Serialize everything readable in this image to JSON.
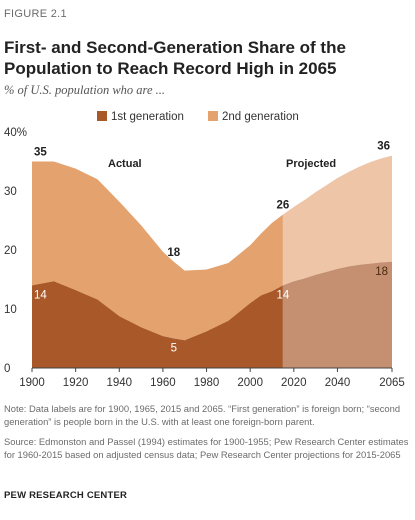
{
  "figure_label": "FIGURE 2.1",
  "title": "First- and Second-Generation Share of the Population to Reach Record High in 2065",
  "subtitle": "% of U.S. population who are ...",
  "notes": [
    "Note: Data labels are for 1900, 1965, 2015 and 2065. “First generation” is foreign born; “second generation” is people born in the U.S. with at least one foreign-born parent.",
    "Source: Edmonston and Passel (1994) estimates for 1900-1955; Pew Research Center estimates for 1960-2015 based on adjusted census data; Pew Research Center projections for 2015-2065"
  ],
  "source_org": "PEW RESEARCH CENTER",
  "colors": {
    "first_gen": "#a9582a",
    "second_gen": "#e3a26e",
    "first_gen_projected": "#c59071",
    "second_gen_projected": "#eec5a7"
  },
  "chart_data": {
    "type": "area",
    "stacked": true,
    "x": [
      1900,
      1910,
      1920,
      1930,
      1940,
      1950,
      1960,
      1965,
      1970,
      1980,
      1990,
      2000,
      2005,
      2010,
      2015,
      2020,
      2025,
      2030,
      2035,
      2040,
      2045,
      2050,
      2055,
      2060,
      2065
    ],
    "series": [
      {
        "name": "1st generation",
        "values": [
          14,
          14.7,
          13.2,
          11.6,
          8.8,
          6.9,
          5.4,
          5,
          4.7,
          6.2,
          8,
          11,
          12.3,
          13,
          14,
          14.7,
          15.2,
          15.8,
          16.3,
          16.8,
          17.2,
          17.5,
          17.7,
          17.9,
          18
        ]
      },
      {
        "name": "2nd generation",
        "values": [
          21,
          20.3,
          20.6,
          20.4,
          19.4,
          17.3,
          14.3,
          13,
          11.8,
          10.5,
          9.8,
          9.8,
          10.5,
          11.6,
          12,
          12.6,
          13.3,
          14,
          14.7,
          15.4,
          16,
          16.6,
          17.2,
          17.6,
          18
        ]
      }
    ],
    "projection_start": 2015,
    "region_labels": {
      "actual": "Actual",
      "projected": "Projected"
    },
    "data_labels": [
      {
        "text": "35",
        "style": "total",
        "x": 1900,
        "y": 35
      },
      {
        "text": "14",
        "style": "first",
        "x": 1900,
        "y": 14
      },
      {
        "text": "18",
        "style": "total",
        "x": 1965,
        "y": 18
      },
      {
        "text": "5",
        "style": "first",
        "x": 1965,
        "y": 5
      },
      {
        "text": "26",
        "style": "total",
        "x": 2015,
        "y": 26
      },
      {
        "text": "14",
        "style": "first",
        "x": 2015,
        "y": 14
      },
      {
        "text": "36",
        "style": "total",
        "x": 2065,
        "y": 36
      },
      {
        "text": "18",
        "style": "first",
        "x": 2065,
        "y": 18
      }
    ],
    "xticks": [
      1900,
      1920,
      1940,
      1960,
      1980,
      2000,
      2020,
      2040,
      2065
    ],
    "yticks": [
      0,
      10,
      20,
      30,
      40
    ],
    "ytick_labels": [
      "0",
      "10",
      "20",
      "30",
      "40%"
    ],
    "xlim": [
      1900,
      2065
    ],
    "ylim": [
      0,
      40
    ],
    "legend_position": "top",
    "grid": false,
    "xlabel": "",
    "ylabel": ""
  }
}
